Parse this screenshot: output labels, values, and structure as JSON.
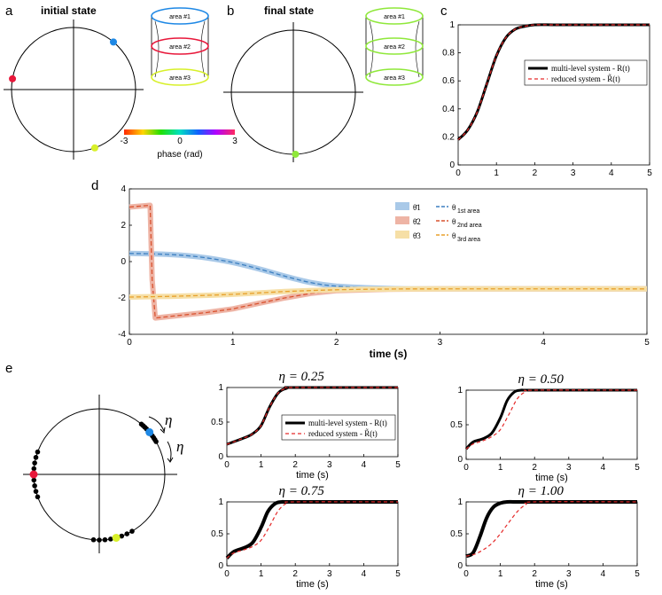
{
  "panel_labels": {
    "a": "a",
    "b": "b",
    "c": "c",
    "d": "d",
    "e": "e"
  },
  "colors": {
    "blue": "#1e88e5",
    "red": "#e8173a",
    "green": "#9be21d",
    "yellow": "#d8f02a",
    "lightgreen": "#8fe83a",
    "black": "#000000",
    "dashed_red": "#e52a2a",
    "theta1": "#3c7fc0",
    "theta1_band": "#a9c9e8",
    "theta2": "#d9522f",
    "theta2_band": "#eeb4a5",
    "theta3": "#e8a12c",
    "theta3_band": "#f6dfa6"
  },
  "panel_a": {
    "title": "initial state",
    "oscillators": [
      {
        "name": "area #1",
        "color": "blue",
        "phase_deg": 50
      },
      {
        "name": "area #2",
        "color": "red",
        "phase_deg": 170
      },
      {
        "name": "area #3",
        "color": "yellow",
        "phase_deg": 290
      }
    ],
    "areas": [
      {
        "label": "area #1",
        "color": "#1e88e5"
      },
      {
        "label": "area #2",
        "color": "#e8173a"
      },
      {
        "label": "area #3",
        "color": "#d8f02a"
      }
    ],
    "colorbar": {
      "min_label": "-3",
      "mid_label": "0",
      "max_label": "3",
      "caption": "phase (rad)"
    }
  },
  "panel_b": {
    "title": "final state",
    "oscillator_phase_deg": 272,
    "areas": [
      {
        "label": "area #1",
        "color": "#8fe83a"
      },
      {
        "label": "area #2",
        "color": "#8fe83a"
      },
      {
        "label": "area #3",
        "color": "#8fe83a"
      }
    ]
  },
  "chart_data": [
    {
      "id": "c",
      "type": "line",
      "title": "",
      "xlabel": "",
      "ylabel": "",
      "xlim": [
        0,
        5
      ],
      "ylim": [
        0,
        1
      ],
      "xticks": [
        "0",
        "1",
        "2",
        "3",
        "4",
        "5"
      ],
      "yticks": [
        "0",
        "0.2",
        "0.4",
        "0.6",
        "0.8",
        "1"
      ],
      "series": [
        {
          "name": "multi-level system - R(t)",
          "style": "solid-black",
          "x": [
            0,
            0.25,
            0.5,
            0.75,
            1.0,
            1.25,
            1.5,
            1.75,
            2.0,
            2.5,
            3,
            5
          ],
          "y": [
            0.18,
            0.25,
            0.38,
            0.58,
            0.78,
            0.91,
            0.97,
            0.99,
            1.0,
            1.0,
            1.0,
            1.0
          ]
        },
        {
          "name": "reduced system - R̃(t)",
          "style": "dashed-red",
          "x": [
            0,
            0.25,
            0.5,
            0.75,
            1.0,
            1.25,
            1.5,
            1.75,
            2.0,
            2.5,
            3,
            5
          ],
          "y": [
            0.18,
            0.25,
            0.38,
            0.58,
            0.78,
            0.91,
            0.97,
            0.99,
            1.0,
            1.0,
            1.0,
            1.0
          ]
        }
      ],
      "legend": [
        "multi-level system - R(t)",
        "reduced system - R̃(t)"
      ],
      "legend_position": "center-right"
    },
    {
      "id": "d",
      "type": "line",
      "xlabel": "time (s)",
      "ylabel": "",
      "xlim": [
        0,
        5
      ],
      "ylim": [
        -4,
        4
      ],
      "xticks": [
        "0",
        "1",
        "2",
        "3",
        "4",
        "5"
      ],
      "yticks": [
        "-4",
        "-2",
        "0",
        "2",
        "4"
      ],
      "series": [
        {
          "name": "θ̄1",
          "ref": "θ1st area",
          "color": "theta1",
          "x": [
            0,
            0.25,
            0.5,
            0.75,
            1.0,
            1.25,
            1.5,
            1.75,
            2.0,
            2.5,
            3,
            5
          ],
          "y": [
            0.45,
            0.42,
            0.35,
            0.2,
            -0.05,
            -0.4,
            -0.8,
            -1.15,
            -1.35,
            -1.48,
            -1.5,
            -1.5
          ]
        },
        {
          "name": "θ̄2",
          "ref": "θ2nd area",
          "color": "theta2",
          "x": [
            0,
            0.2,
            0.22,
            0.25,
            0.5,
            0.75,
            1.0,
            1.25,
            1.5,
            1.75,
            2.0,
            2.5,
            3,
            5
          ],
          "y": [
            3.0,
            3.1,
            -1.0,
            -3.1,
            -2.95,
            -2.8,
            -2.6,
            -2.3,
            -2.0,
            -1.75,
            -1.6,
            -1.52,
            -1.5,
            -1.5
          ]
        },
        {
          "name": "θ̄3",
          "ref": "θ3rd area",
          "color": "theta3",
          "x": [
            0,
            0.5,
            1.0,
            1.5,
            2.0,
            2.5,
            3,
            5
          ],
          "y": [
            -1.95,
            -1.9,
            -1.8,
            -1.65,
            -1.55,
            -1.51,
            -1.5,
            -1.5
          ]
        }
      ],
      "legend": [
        {
          "bar": "θ̄1",
          "bar_sub": "1",
          "line": "θ",
          "line_sub": "1st area"
        },
        {
          "bar": "θ̄2",
          "bar_sub": "2",
          "line": "θ",
          "line_sub": "2nd area"
        },
        {
          "bar": "θ̄3",
          "bar_sub": "3",
          "line": "θ",
          "line_sub": "3rd area"
        }
      ],
      "legend_position": "top-right"
    },
    {
      "id": "e1",
      "type": "line",
      "title": "η = 0.25",
      "xlabel": "time (s)",
      "xlim": [
        0,
        5
      ],
      "ylim": [
        0,
        1
      ],
      "xticks": [
        "0",
        "1",
        "2",
        "3",
        "4",
        "5"
      ],
      "yticks": [
        "0",
        "0.5",
        "1"
      ],
      "legend": [
        "multi-level system - R(t)",
        "reduced system - R̃(t)"
      ],
      "legend_position": "bottom-right",
      "series": [
        {
          "name": "multi-level",
          "x": [
            0,
            0.5,
            0.75,
            1.0,
            1.25,
            1.5,
            1.75,
            2.0,
            5
          ],
          "y": [
            0.18,
            0.27,
            0.33,
            0.45,
            0.72,
            0.92,
            0.99,
            1.0,
            1.0
          ]
        },
        {
          "name": "reduced",
          "x": [
            0,
            0.5,
            0.75,
            1.0,
            1.25,
            1.5,
            1.75,
            2.0,
            5
          ],
          "y": [
            0.18,
            0.27,
            0.33,
            0.45,
            0.72,
            0.92,
            0.99,
            1.0,
            1.0
          ]
        }
      ]
    },
    {
      "id": "e2",
      "type": "line",
      "title": "η = 0.50",
      "xlabel": "time (s)",
      "xlim": [
        0,
        5
      ],
      "ylim": [
        0,
        1
      ],
      "xticks": [
        "0",
        "1",
        "2",
        "3",
        "4",
        "5"
      ],
      "yticks": [
        "0",
        "0.5",
        "1"
      ],
      "series": [
        {
          "name": "multi-level",
          "x": [
            0,
            0.2,
            0.5,
            0.75,
            1.0,
            1.2,
            1.4,
            1.6,
            2.0,
            5
          ],
          "y": [
            0.15,
            0.25,
            0.3,
            0.38,
            0.6,
            0.85,
            0.97,
            1.0,
            1.0,
            1.0
          ]
        },
        {
          "name": "reduced",
          "x": [
            0,
            0.2,
            0.5,
            0.75,
            1.0,
            1.25,
            1.5,
            1.75,
            2.0,
            5
          ],
          "y": [
            0.15,
            0.22,
            0.27,
            0.33,
            0.43,
            0.65,
            0.88,
            0.98,
            1.0,
            1.0
          ]
        }
      ]
    },
    {
      "id": "e3",
      "type": "line",
      "title": "η = 0.75",
      "xlabel": "time (s)",
      "xlim": [
        0,
        5
      ],
      "ylim": [
        0,
        1
      ],
      "xticks": [
        "0",
        "1",
        "2",
        "3",
        "4",
        "5"
      ],
      "yticks": [
        "0",
        "0.5",
        "1"
      ],
      "series": [
        {
          "name": "multi-level",
          "x": [
            0,
            0.2,
            0.5,
            0.75,
            1.0,
            1.2,
            1.4,
            1.6,
            2.0,
            5
          ],
          "y": [
            0.12,
            0.22,
            0.28,
            0.36,
            0.6,
            0.85,
            0.97,
            1.0,
            1.0,
            1.0
          ]
        },
        {
          "name": "reduced",
          "x": [
            0,
            0.2,
            0.5,
            0.75,
            1.0,
            1.25,
            1.5,
            1.75,
            2.0,
            5
          ],
          "y": [
            0.12,
            0.2,
            0.25,
            0.3,
            0.4,
            0.62,
            0.86,
            0.98,
            1.0,
            1.0
          ]
        }
      ]
    },
    {
      "id": "e4",
      "type": "line",
      "title": "η = 1.00",
      "xlabel": "time (s)",
      "xlim": [
        0,
        5
      ],
      "ylim": [
        0,
        1
      ],
      "xticks": [
        "0",
        "1",
        "2",
        "3",
        "4",
        "5"
      ],
      "yticks": [
        "0",
        "0.5",
        "1"
      ],
      "series": [
        {
          "name": "multi-level",
          "x": [
            0,
            0.2,
            0.4,
            0.6,
            0.8,
            1.0,
            1.2,
            1.5,
            2.0,
            5
          ],
          "y": [
            0.15,
            0.2,
            0.45,
            0.75,
            0.92,
            0.98,
            1.0,
            1.0,
            1.0,
            1.0
          ]
        },
        {
          "name": "reduced",
          "x": [
            0,
            0.25,
            0.5,
            0.75,
            1.0,
            1.25,
            1.5,
            1.75,
            2.0,
            5
          ],
          "y": [
            0.15,
            0.18,
            0.25,
            0.35,
            0.5,
            0.68,
            0.85,
            0.96,
            1.0,
            1.0
          ]
        }
      ]
    }
  ],
  "panel_e_diagram": {
    "eta_label": "η",
    "big_dots": [
      {
        "color": "blue",
        "phase_deg": 40
      },
      {
        "color": "red",
        "phase_deg": 180
      },
      {
        "color": "yellow",
        "phase_deg": 285
      }
    ]
  }
}
